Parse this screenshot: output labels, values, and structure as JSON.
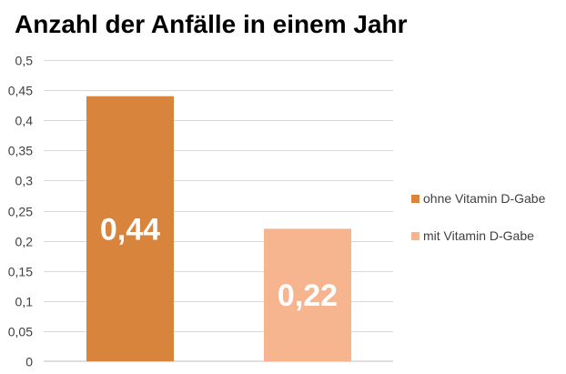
{
  "chart_data": {
    "type": "bar",
    "title": "Anzahl der Anfälle in einem Jahr",
    "categories": [
      ""
    ],
    "series": [
      {
        "name": "ohne Vitamin D-Gabe",
        "values": [
          0.44
        ],
        "data_label": "0,44",
        "color": "#d9843d"
      },
      {
        "name": "mit Vitamin D-Gabe",
        "values": [
          0.22
        ],
        "data_label": "0,22",
        "color": "#f6b58f"
      }
    ],
    "ylim": [
      0,
      0.5
    ],
    "y_ticks": [
      0,
      0.05,
      0.1,
      0.15,
      0.2,
      0.25,
      0.3,
      0.35,
      0.4,
      0.45,
      0.5
    ],
    "y_tick_labels": [
      "0",
      "0,05",
      "0,1",
      "0,15",
      "0,2",
      "0,25",
      "0,3",
      "0,35",
      "0,4",
      "0,45",
      "0,5"
    ],
    "xlabel": "",
    "ylabel": "",
    "grid": true,
    "legend_position": "right"
  }
}
